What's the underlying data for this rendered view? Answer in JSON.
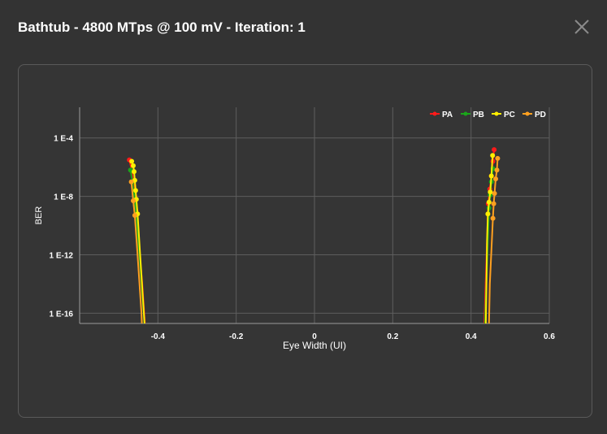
{
  "dialog": {
    "title": "Bathtub - 4800 MTps @ 100 mV - Iteration: 1",
    "close_icon": "close-icon"
  },
  "chart_data": {
    "type": "line",
    "xlabel": "Eye Width (UI)",
    "ylabel": "BER",
    "x_ticks": [
      -0.4,
      -0.2,
      0,
      0.2,
      0.4,
      0.6
    ],
    "x_tick_labels": [
      "-0.4",
      "-0.2",
      "0",
      "0.2",
      "0.4",
      "0.6"
    ],
    "y_ticks": [
      -4,
      -8,
      -12,
      -16
    ],
    "y_tick_labels": [
      "1 E-4",
      "1 E-8",
      "1 E-12",
      "1 E-16"
    ],
    "xlim": [
      -0.6,
      0.6
    ],
    "ylim_log10": [
      -16.7,
      -1.9
    ],
    "y_scale": "log",
    "grid": true,
    "legend_position": "top-right",
    "series": [
      {
        "name": "PA",
        "color": "#ff1a1a",
        "left": [
          [
            -0.473,
            -5.5
          ],
          [
            -0.466,
            -6.3
          ],
          [
            -0.462,
            -7.3
          ],
          [
            -0.459,
            -8.0
          ],
          [
            -0.456,
            -9.0
          ],
          [
            -0.44,
            -14.0
          ],
          [
            -0.43,
            -18.0
          ]
        ],
        "right": [
          [
            0.459,
            -4.8
          ],
          [
            0.456,
            -5.6
          ],
          [
            0.452,
            -6.6
          ],
          [
            0.448,
            -7.5
          ],
          [
            0.444,
            -8.5
          ],
          [
            0.435,
            -16.0
          ],
          [
            0.432,
            -18.0
          ]
        ]
      },
      {
        "name": "PB",
        "color": "#1aa61a",
        "left": [
          [
            -0.47,
            -6.2
          ],
          [
            -0.465,
            -7.0
          ],
          [
            -0.461,
            -7.8
          ],
          [
            -0.458,
            -8.6
          ],
          [
            -0.444,
            -13.0
          ],
          [
            -0.431,
            -18.0
          ]
        ],
        "right": [
          [
            0.456,
            -6.1
          ],
          [
            0.452,
            -7.0
          ],
          [
            0.449,
            -7.9
          ],
          [
            0.446,
            -8.8
          ],
          [
            0.439,
            -14.0
          ],
          [
            0.434,
            -18.0
          ]
        ]
      },
      {
        "name": "PC",
        "color": "#ffee00",
        "left": [
          [
            -0.467,
            -5.6
          ],
          [
            -0.463,
            -5.9
          ],
          [
            -0.461,
            -6.3
          ],
          [
            -0.459,
            -6.9
          ],
          [
            -0.457,
            -7.6
          ],
          [
            -0.455,
            -8.2
          ],
          [
            -0.452,
            -9.2
          ],
          [
            -0.443,
            -13.0
          ],
          [
            -0.431,
            -18.0
          ]
        ],
        "right": [
          [
            0.455,
            -5.2
          ],
          [
            0.452,
            -6.6
          ],
          [
            0.449,
            -7.7
          ],
          [
            0.446,
            -8.4
          ],
          [
            0.443,
            -9.2
          ],
          [
            0.441,
            -11.0
          ],
          [
            0.437,
            -18.0
          ]
        ]
      },
      {
        "name": "PD",
        "color": "#ffa020",
        "left": [
          [
            -0.468,
            -7.0
          ],
          [
            -0.463,
            -8.3
          ],
          [
            -0.459,
            -9.3
          ],
          [
            -0.452,
            -12.0
          ],
          [
            -0.442,
            -16.0
          ],
          [
            -0.439,
            -18.0
          ]
        ],
        "right": [
          [
            0.468,
            -5.4
          ],
          [
            0.466,
            -6.2
          ],
          [
            0.463,
            -6.8
          ],
          [
            0.46,
            -7.8
          ],
          [
            0.458,
            -8.5
          ],
          [
            0.456,
            -9.5
          ],
          [
            0.448,
            -14.0
          ],
          [
            0.445,
            -18.0
          ]
        ]
      }
    ]
  }
}
